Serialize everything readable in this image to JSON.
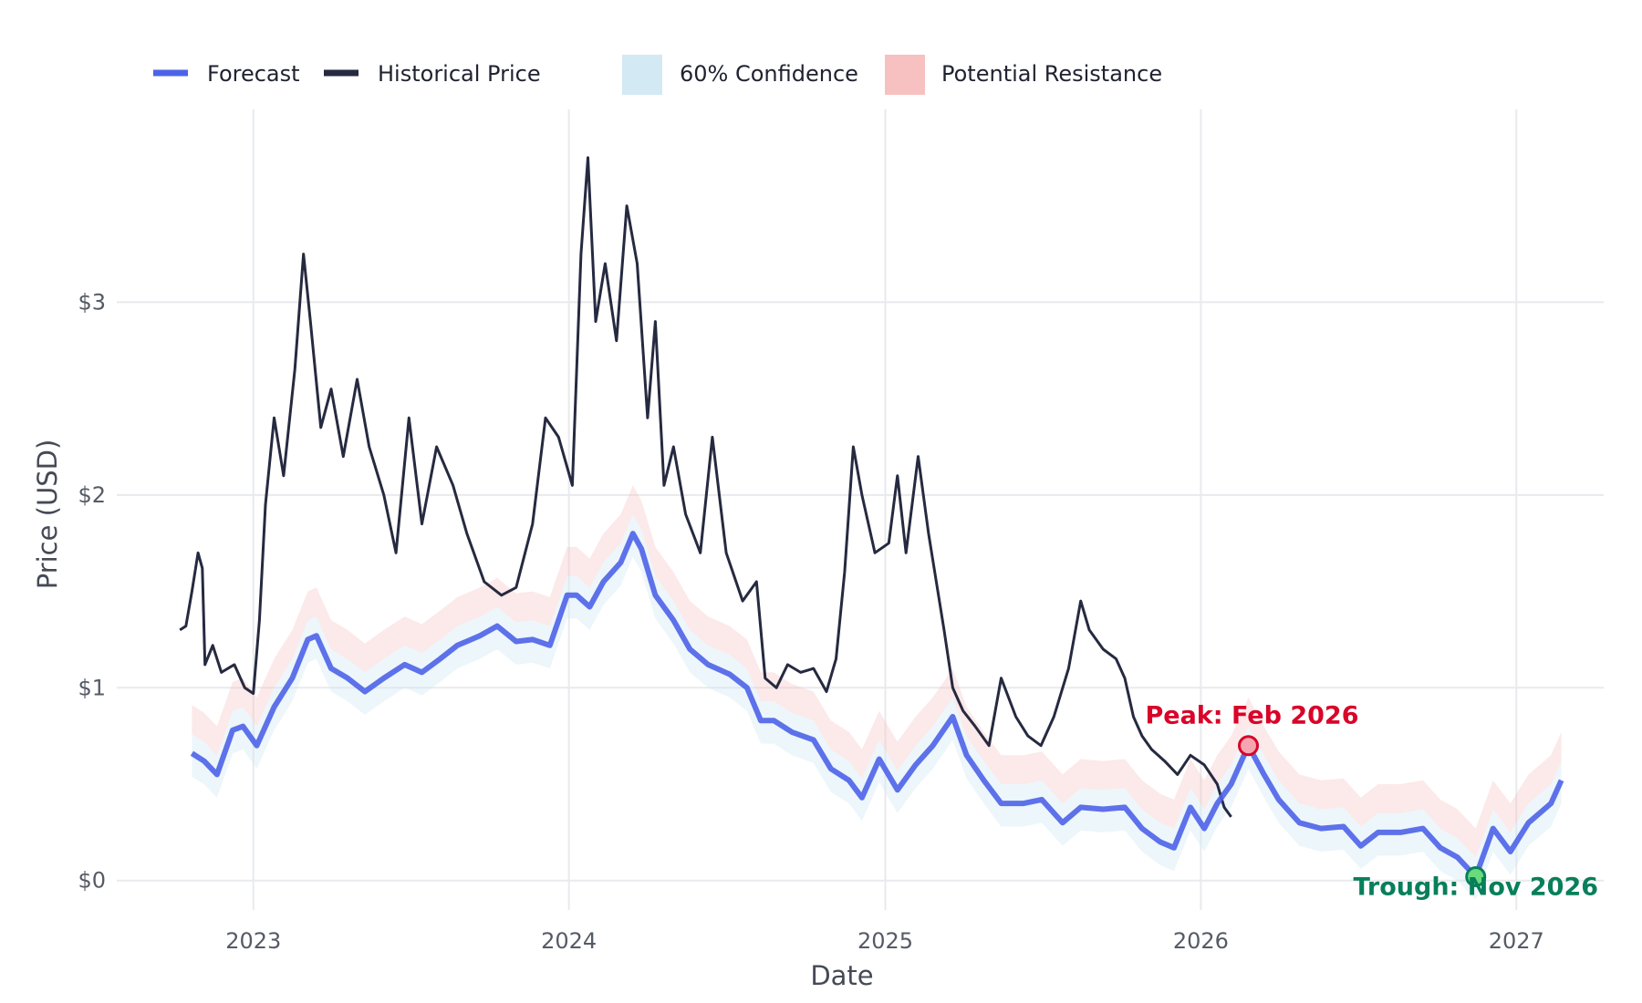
{
  "chart_data": {
    "type": "line",
    "title": "",
    "xlabel": "Date",
    "ylabel": "Price (USD)",
    "x_tick_labels": [
      "2023",
      "2024",
      "2025",
      "2026",
      "2027"
    ],
    "y_tick_labels": [
      "$0",
      "$1",
      "$2",
      "$3"
    ],
    "y_ticks": [
      0,
      1,
      2,
      3
    ],
    "xlim": [
      "2022-07-27",
      "2027-04-12"
    ],
    "ylim": [
      -0.2,
      4.0
    ],
    "grid": true,
    "legend_position": "top-left",
    "legend": [
      {
        "label": "Forecast",
        "kind": "line",
        "color": "#4c63e8"
      },
      {
        "label": "Historical Price",
        "kind": "line",
        "color": "#262a40"
      },
      {
        "label": "60% Confidence",
        "kind": "area",
        "color": "#d3e9f3"
      },
      {
        "label": "Potential Resistance",
        "kind": "area",
        "color": "#f7c1c1"
      }
    ],
    "series": [
      {
        "name": "Historical Price",
        "color": "#262a40",
        "points": [
          [
            "2022-10-08",
            1.3
          ],
          [
            "2022-10-15",
            1.32
          ],
          [
            "2022-10-22",
            1.5
          ],
          [
            "2022-10-29",
            1.7
          ],
          [
            "2022-11-03",
            1.62
          ],
          [
            "2022-11-06",
            1.12
          ],
          [
            "2022-11-15",
            1.22
          ],
          [
            "2022-11-25",
            1.08
          ],
          [
            "2022-12-10",
            1.12
          ],
          [
            "2022-12-22",
            1.0
          ],
          [
            "2023-01-01",
            0.97
          ],
          [
            "2023-01-08",
            1.35
          ],
          [
            "2023-01-15",
            1.95
          ],
          [
            "2023-01-25",
            2.4
          ],
          [
            "2023-02-05",
            2.1
          ],
          [
            "2023-02-18",
            2.65
          ],
          [
            "2023-02-28",
            3.25
          ],
          [
            "2023-03-08",
            2.9
          ],
          [
            "2023-03-20",
            2.35
          ],
          [
            "2023-04-01",
            2.55
          ],
          [
            "2023-04-15",
            2.2
          ],
          [
            "2023-05-01",
            2.6
          ],
          [
            "2023-05-15",
            2.25
          ],
          [
            "2023-06-01",
            2.0
          ],
          [
            "2023-06-15",
            1.7
          ],
          [
            "2023-06-30",
            2.4
          ],
          [
            "2023-07-15",
            1.85
          ],
          [
            "2023-08-01",
            2.25
          ],
          [
            "2023-08-20",
            2.05
          ],
          [
            "2023-09-05",
            1.8
          ],
          [
            "2023-09-25",
            1.55
          ],
          [
            "2023-10-15",
            1.48
          ],
          [
            "2023-11-01",
            1.52
          ],
          [
            "2023-11-20",
            1.85
          ],
          [
            "2023-12-05",
            2.4
          ],
          [
            "2023-12-20",
            2.3
          ],
          [
            "2024-01-05",
            2.05
          ],
          [
            "2024-01-15",
            3.25
          ],
          [
            "2024-01-23",
            3.75
          ],
          [
            "2024-02-01",
            2.9
          ],
          [
            "2024-02-12",
            3.2
          ],
          [
            "2024-02-25",
            2.8
          ],
          [
            "2024-03-08",
            3.5
          ],
          [
            "2024-03-20",
            3.2
          ],
          [
            "2024-04-01",
            2.4
          ],
          [
            "2024-04-10",
            2.9
          ],
          [
            "2024-04-20",
            2.05
          ],
          [
            "2024-05-01",
            2.25
          ],
          [
            "2024-05-15",
            1.9
          ],
          [
            "2024-06-01",
            1.7
          ],
          [
            "2024-06-15",
            2.3
          ],
          [
            "2024-07-01",
            1.7
          ],
          [
            "2024-07-20",
            1.45
          ],
          [
            "2024-08-05",
            1.55
          ],
          [
            "2024-08-15",
            1.05
          ],
          [
            "2024-08-28",
            1.0
          ],
          [
            "2024-09-10",
            1.12
          ],
          [
            "2024-09-25",
            1.08
          ],
          [
            "2024-10-10",
            1.1
          ],
          [
            "2024-10-25",
            0.98
          ],
          [
            "2024-11-05",
            1.15
          ],
          [
            "2024-11-15",
            1.6
          ],
          [
            "2024-11-25",
            2.25
          ],
          [
            "2024-12-05",
            2.0
          ],
          [
            "2024-12-20",
            1.7
          ],
          [
            "2025-01-05",
            1.75
          ],
          [
            "2025-01-15",
            2.1
          ],
          [
            "2025-01-25",
            1.7
          ],
          [
            "2025-02-08",
            2.2
          ],
          [
            "2025-02-20",
            1.8
          ],
          [
            "2025-03-01",
            1.55
          ],
          [
            "2025-03-10",
            1.3
          ],
          [
            "2025-03-20",
            1.0
          ],
          [
            "2025-04-01",
            0.88
          ],
          [
            "2025-04-15",
            0.8
          ],
          [
            "2025-05-01",
            0.7
          ],
          [
            "2025-05-15",
            1.05
          ],
          [
            "2025-06-01",
            0.85
          ],
          [
            "2025-06-15",
            0.75
          ],
          [
            "2025-06-30",
            0.7
          ],
          [
            "2025-07-15",
            0.85
          ],
          [
            "2025-08-01",
            1.1
          ],
          [
            "2025-08-15",
            1.45
          ],
          [
            "2025-08-25",
            1.3
          ],
          [
            "2025-09-10",
            1.2
          ],
          [
            "2025-09-25",
            1.15
          ],
          [
            "2025-10-05",
            1.05
          ],
          [
            "2025-10-15",
            0.85
          ],
          [
            "2025-10-25",
            0.75
          ],
          [
            "2025-11-05",
            0.68
          ],
          [
            "2025-11-20",
            0.62
          ],
          [
            "2025-12-05",
            0.55
          ],
          [
            "2025-12-20",
            0.65
          ],
          [
            "2026-01-05",
            0.6
          ],
          [
            "2026-01-20",
            0.5
          ],
          [
            "2026-01-28",
            0.38
          ],
          [
            "2026-02-05",
            0.33
          ]
        ]
      },
      {
        "name": "Forecast",
        "color": "#4c63e8",
        "points": [
          [
            "2022-10-22",
            0.66
          ],
          [
            "2022-11-05",
            0.62
          ],
          [
            "2022-11-20",
            0.55
          ],
          [
            "2022-12-08",
            0.78
          ],
          [
            "2022-12-20",
            0.8
          ],
          [
            "2023-01-05",
            0.7
          ],
          [
            "2023-01-25",
            0.9
          ],
          [
            "2023-02-15",
            1.05
          ],
          [
            "2023-03-05",
            1.25
          ],
          [
            "2023-03-15",
            1.27
          ],
          [
            "2023-04-01",
            1.1
          ],
          [
            "2023-04-20",
            1.05
          ],
          [
            "2023-05-10",
            0.98
          ],
          [
            "2023-06-01",
            1.05
          ],
          [
            "2023-06-25",
            1.12
          ],
          [
            "2023-07-15",
            1.08
          ],
          [
            "2023-08-05",
            1.15
          ],
          [
            "2023-08-25",
            1.22
          ],
          [
            "2023-09-20",
            1.27
          ],
          [
            "2023-10-10",
            1.32
          ],
          [
            "2023-11-01",
            1.24
          ],
          [
            "2023-11-20",
            1.25
          ],
          [
            "2023-12-10",
            1.22
          ],
          [
            "2023-12-30",
            1.48
          ],
          [
            "2024-01-10",
            1.48
          ],
          [
            "2024-01-25",
            1.42
          ],
          [
            "2024-02-10",
            1.55
          ],
          [
            "2024-03-01",
            1.65
          ],
          [
            "2024-03-15",
            1.8
          ],
          [
            "2024-03-25",
            1.72
          ],
          [
            "2024-04-10",
            1.48
          ],
          [
            "2024-05-01",
            1.35
          ],
          [
            "2024-05-20",
            1.2
          ],
          [
            "2024-06-10",
            1.12
          ],
          [
            "2024-07-05",
            1.07
          ],
          [
            "2024-07-25",
            1.0
          ],
          [
            "2024-08-10",
            0.83
          ],
          [
            "2024-08-25",
            0.83
          ],
          [
            "2024-09-15",
            0.77
          ],
          [
            "2024-10-10",
            0.73
          ],
          [
            "2024-10-30",
            0.58
          ],
          [
            "2024-11-20",
            0.52
          ],
          [
            "2024-12-05",
            0.43
          ],
          [
            "2024-12-25",
            0.63
          ],
          [
            "2025-01-15",
            0.47
          ],
          [
            "2025-02-05",
            0.6
          ],
          [
            "2025-02-25",
            0.7
          ],
          [
            "2025-03-20",
            0.85
          ],
          [
            "2025-04-05",
            0.65
          ],
          [
            "2025-04-25",
            0.52
          ],
          [
            "2025-05-15",
            0.4
          ],
          [
            "2025-06-10",
            0.4
          ],
          [
            "2025-07-01",
            0.42
          ],
          [
            "2025-07-25",
            0.3
          ],
          [
            "2025-08-15",
            0.38
          ],
          [
            "2025-09-10",
            0.37
          ],
          [
            "2025-10-05",
            0.38
          ],
          [
            "2025-10-25",
            0.27
          ],
          [
            "2025-11-15",
            0.2
          ],
          [
            "2025-12-01",
            0.17
          ],
          [
            "2025-12-20",
            0.38
          ],
          [
            "2026-01-05",
            0.27
          ],
          [
            "2026-01-20",
            0.4
          ],
          [
            "2026-02-05",
            0.5
          ],
          [
            "2026-02-25",
            0.7
          ],
          [
            "2026-03-15",
            0.55
          ],
          [
            "2026-04-01",
            0.42
          ],
          [
            "2026-04-25",
            0.3
          ],
          [
            "2026-05-20",
            0.27
          ],
          [
            "2026-06-15",
            0.28
          ],
          [
            "2026-07-05",
            0.18
          ],
          [
            "2026-07-25",
            0.25
          ],
          [
            "2026-08-20",
            0.25
          ],
          [
            "2026-09-15",
            0.27
          ],
          [
            "2026-10-05",
            0.17
          ],
          [
            "2026-10-25",
            0.12
          ],
          [
            "2026-11-15",
            0.02
          ],
          [
            "2026-12-05",
            0.27
          ],
          [
            "2026-12-25",
            0.15
          ],
          [
            "2027-01-15",
            0.3
          ],
          [
            "2027-02-10",
            0.4
          ],
          [
            "2027-02-22",
            0.52
          ]
        ]
      }
    ],
    "bands": [
      {
        "name": "60% Confidence",
        "color": "#d3e9f3",
        "lower_offset": -0.12,
        "upper_offset": 0.1
      },
      {
        "name": "Potential Resistance",
        "color": "#f7c1c1",
        "lower_offset": 0.1,
        "upper_offset": 0.25
      }
    ],
    "annotations": [
      {
        "label": "Peak: Feb 2026",
        "date": "2026-02-25",
        "value": 0.7,
        "color": "#d90429",
        "fill": "#f4a5b0"
      },
      {
        "label": "Trough: Nov 2026",
        "date": "2026-11-15",
        "value": 0.02,
        "color": "#087f5b",
        "fill": "#69db7c"
      }
    ]
  }
}
